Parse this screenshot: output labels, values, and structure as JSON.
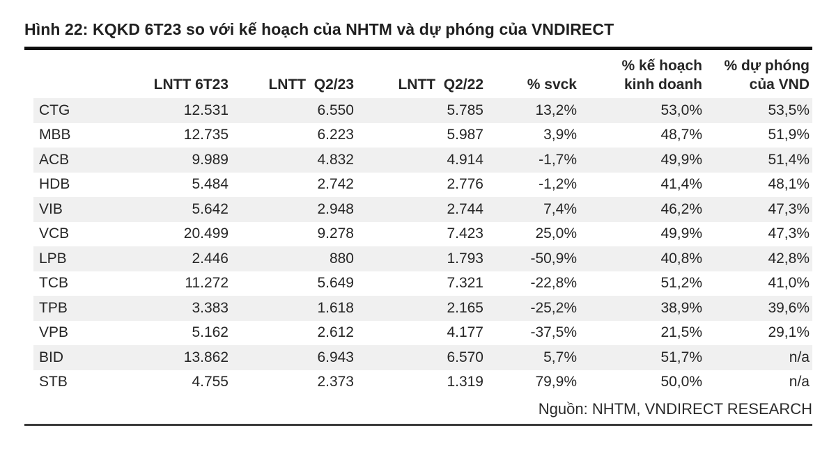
{
  "figure": {
    "title": "Hình 22: KQKD 6T23 so với kế hoạch của NHTM và dự phóng của VNDIRECT",
    "source": "Nguồn: NHTM, VNDIRECT RESEARCH"
  },
  "colors": {
    "text": "#262626",
    "row_stripe": "#f0f0f0",
    "heavy_rule": "#0f0f0f",
    "light_rule": "#3b3b3b"
  },
  "chart_data": {
    "type": "table",
    "title": "Hình 22: KQKD 6T23 so với kế hoạch của NHTM và dự phóng của VNDIRECT",
    "columns": [
      "",
      "LNTT 6T23",
      "LNTT  Q2/23",
      "LNTT  Q2/22",
      "% svck",
      "% kế hoạch\nkinh doanh",
      "% dự phóng\ncủa VND"
    ],
    "rows": [
      [
        "CTG",
        "12.531",
        "6.550",
        "5.785",
        "13,2%",
        "53,0%",
        "53,5%"
      ],
      [
        "MBB",
        "12.735",
        "6.223",
        "5.987",
        "3,9%",
        "48,7%",
        "51,9%"
      ],
      [
        "ACB",
        "9.989",
        "4.832",
        "4.914",
        "-1,7%",
        "49,9%",
        "51,4%"
      ],
      [
        "HDB",
        "5.484",
        "2.742",
        "2.776",
        "-1,2%",
        "41,4%",
        "48,1%"
      ],
      [
        "VIB",
        "5.642",
        "2.948",
        "2.744",
        "7,4%",
        "46,2%",
        "47,3%"
      ],
      [
        "VCB",
        "20.499",
        "9.278",
        "7.423",
        "25,0%",
        "49,9%",
        "47,3%"
      ],
      [
        "LPB",
        "2.446",
        "880",
        "1.793",
        "-50,9%",
        "40,8%",
        "42,8%"
      ],
      [
        "TCB",
        "11.272",
        "5.649",
        "7.321",
        "-22,8%",
        "51,2%",
        "41,0%"
      ],
      [
        "TPB",
        "3.383",
        "1.618",
        "2.165",
        "-25,2%",
        "38,9%",
        "39,6%"
      ],
      [
        "VPB",
        "5.162",
        "2.612",
        "4.177",
        "-37,5%",
        "21,5%",
        "29,1%"
      ],
      [
        "BID",
        "13.862",
        "6.943",
        "6.570",
        "5,7%",
        "51,7%",
        "n/a"
      ],
      [
        "STB",
        "4.755",
        "2.373",
        "1.319",
        "79,9%",
        "50,0%",
        "n/a"
      ]
    ],
    "source": "Nguồn: NHTM, VNDIRECT RESEARCH"
  }
}
